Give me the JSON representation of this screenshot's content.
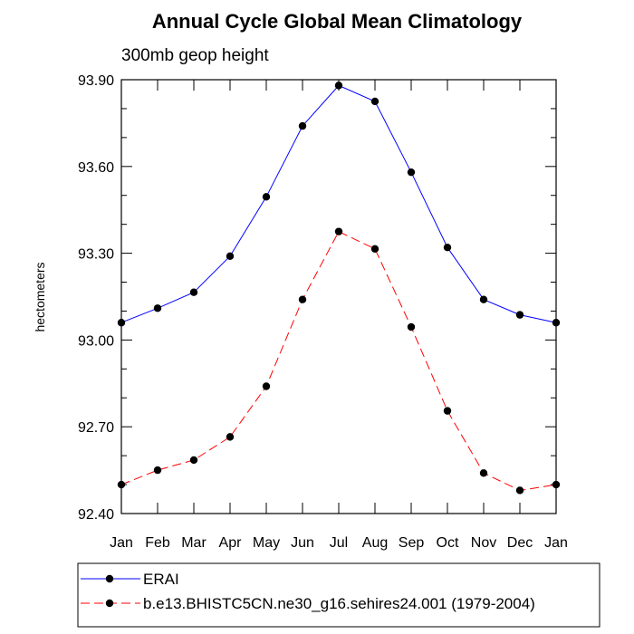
{
  "chart_data": {
    "type": "line",
    "title": "Annual Cycle Global Mean Climatology",
    "subtitle": "300mb geop height",
    "xlabel": "",
    "ylabel": "hectometers",
    "categories": [
      "Jan",
      "Feb",
      "Mar",
      "Apr",
      "May",
      "Jun",
      "Jul",
      "Aug",
      "Sep",
      "Oct",
      "Nov",
      "Dec",
      "Jan"
    ],
    "ylim": [
      92.4,
      93.9
    ],
    "yticks": [
      "92.40",
      "92.70",
      "93.00",
      "93.30",
      "93.60",
      "93.90"
    ],
    "grid": false,
    "legend_position": "bottom",
    "series": [
      {
        "name": "ERAI",
        "color": "#0000ff",
        "line_style": "solid",
        "values": [
          93.06,
          93.11,
          93.165,
          93.29,
          93.495,
          93.74,
          93.88,
          93.825,
          93.58,
          93.32,
          93.14,
          93.087,
          93.06
        ]
      },
      {
        "name": "b.e13.BHISTC5CN.ne30_g16.sehires24.001 (1979-2004)",
        "color": "#ff0000",
        "line_style": "dashed",
        "values": [
          92.5,
          92.55,
          92.585,
          92.665,
          92.84,
          93.14,
          93.375,
          93.315,
          93.045,
          92.755,
          92.54,
          92.48,
          92.5
        ]
      }
    ]
  }
}
